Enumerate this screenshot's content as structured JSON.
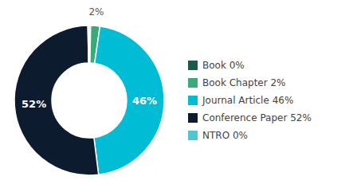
{
  "chart_data": {
    "type": "pie",
    "categories": [
      "Book 0%",
      "Book Chapter 2%",
      "Journal Article 46%",
      "Conference Paper 52%",
      "NTRO 0%"
    ],
    "values": [
      0.3,
      2,
      46,
      52,
      0.3
    ],
    "value_labels": [
      null,
      "2%",
      "46%",
      "52%",
      null
    ],
    "data_labels": true,
    "colors": [
      "#1a5c4a",
      "#3aaa78",
      "#00bcd4",
      "#0d1b2e",
      "#4dc8d0"
    ],
    "legend": "right"
  }
}
